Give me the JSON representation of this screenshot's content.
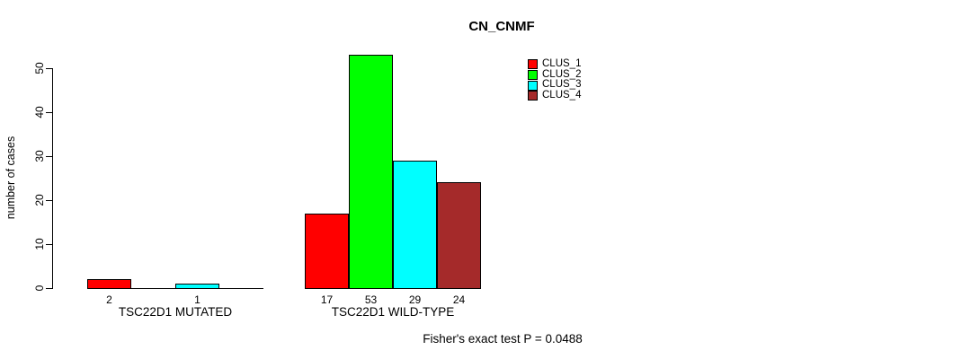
{
  "title": "CN_CNMF",
  "ylabel": "number of cases",
  "footer_annotation": "Fisher's exact test P = 0.0488",
  "group_labels": [
    "TSC22D1 MUTATED",
    "TSC22D1 WILD-TYPE"
  ],
  "legend": {
    "position": "top-right",
    "items": [
      {
        "label": "CLUS_1",
        "color": "#FF0000"
      },
      {
        "label": "CLUS_2",
        "color": "#00FF00"
      },
      {
        "label": "CLUS_3",
        "color": "#00FFFF"
      },
      {
        "label": "CLUS_4",
        "color": "#A52A2A"
      }
    ]
  },
  "chart_data": {
    "type": "bar",
    "title": "CN_CNMF",
    "xlabel": "",
    "ylabel": "number of cases",
    "ylim": [
      0,
      50
    ],
    "yticks": [
      0,
      10,
      20,
      30,
      40,
      50
    ],
    "grid": false,
    "legend_position": "top-right",
    "groups": [
      "TSC22D1 MUTATED",
      "TSC22D1 WILD-TYPE"
    ],
    "series": [
      {
        "name": "CLUS_1",
        "color": "#FF0000",
        "values": [
          2,
          17
        ]
      },
      {
        "name": "CLUS_2",
        "color": "#00FF00",
        "values": [
          0,
          53
        ]
      },
      {
        "name": "CLUS_3",
        "color": "#00FFFF",
        "values": [
          1,
          29
        ]
      },
      {
        "name": "CLUS_4",
        "color": "#A52A2A",
        "values": [
          0,
          24
        ]
      }
    ],
    "bar_value_labels": [
      [
        "2",
        "",
        "1",
        ""
      ],
      [
        "17",
        "53",
        "29",
        "24"
      ]
    ],
    "annotation": "Fisher's exact test P = 0.0488"
  }
}
